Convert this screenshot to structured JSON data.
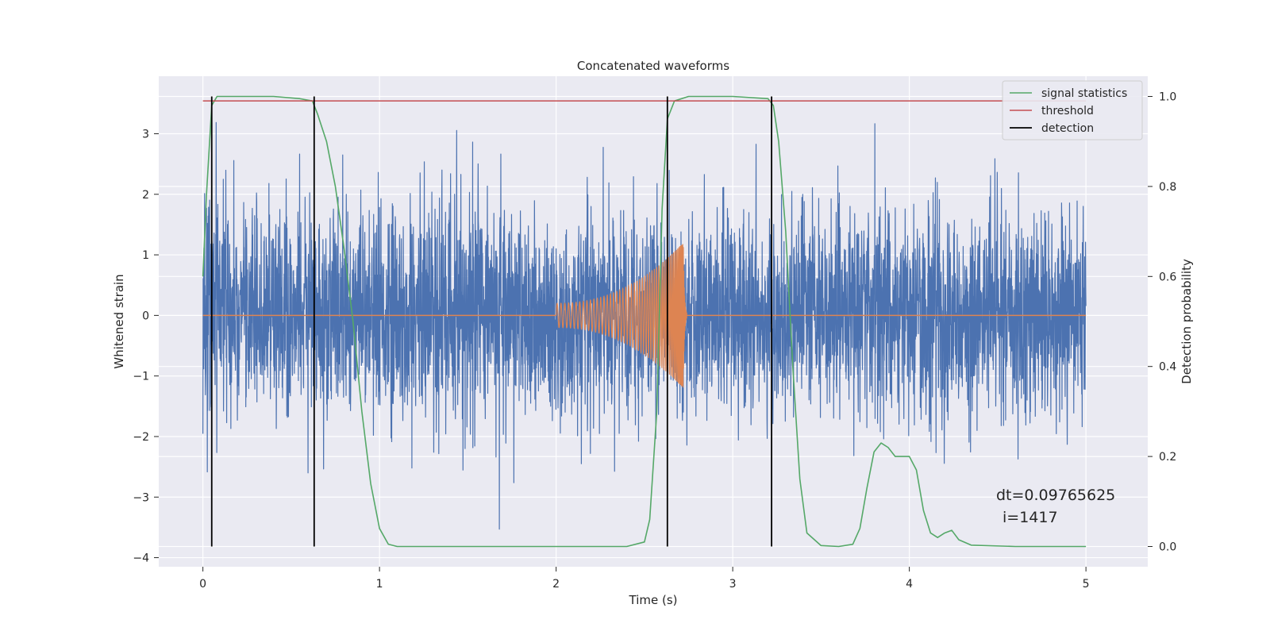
{
  "chart_data": {
    "type": "line",
    "title": "Concatenated waveforms",
    "xlabel": "Time (s)",
    "ylabel": "Whitened strain",
    "y2label": "Detection probability",
    "xlim": [
      -0.25,
      5.35
    ],
    "ylim": [
      -4.15,
      3.95
    ],
    "y2lim": [
      -0.045,
      1.045
    ],
    "xticks": [
      0,
      1,
      2,
      3,
      4,
      5
    ],
    "yticks": [
      -4,
      -3,
      -2,
      -1,
      0,
      1,
      2,
      3
    ],
    "y2ticks": [
      0.0,
      0.2,
      0.4,
      0.6,
      0.8,
      1.0
    ],
    "grid": true,
    "legend_position": "top-right",
    "legend": [
      {
        "label": "signal statistics",
        "color": "#55a868"
      },
      {
        "label": "threshold",
        "color": "#c44e52"
      },
      {
        "label": "detection",
        "color": "#000000"
      }
    ],
    "colors": {
      "background": "#eaeaf2",
      "grid": "#ffffff",
      "strain": "#4c72b0",
      "injection": "#dd8452"
    },
    "strain": {
      "x_range": [
        0,
        5
      ],
      "envelope": [
        -0.8,
        0.6
      ]
    },
    "injection": {
      "x_range": [
        2.0,
        2.74
      ],
      "peak_time": 2.72,
      "peak_amplitude": 1.2
    },
    "threshold": {
      "value": 0.99,
      "x_range": [
        0,
        5
      ]
    },
    "detections": [
      0.05,
      0.63,
      2.63,
      3.22
    ],
    "signal_statistics": {
      "x": [
        0.0,
        0.02,
        0.05,
        0.08,
        0.15,
        0.4,
        0.55,
        0.62,
        0.65,
        0.7,
        0.75,
        0.8,
        0.85,
        0.9,
        0.95,
        1.0,
        1.05,
        1.1,
        1.5,
        2.0,
        2.4,
        2.5,
        2.53,
        2.57,
        2.6,
        2.63,
        2.67,
        2.75,
        3.0,
        3.2,
        3.23,
        3.26,
        3.3,
        3.34,
        3.38,
        3.42,
        3.5,
        3.6,
        3.68,
        3.72,
        3.76,
        3.8,
        3.84,
        3.88,
        3.92,
        3.96,
        4.0,
        4.04,
        4.08,
        4.12,
        4.16,
        4.2,
        4.24,
        4.28,
        4.35,
        4.6,
        5.0
      ],
      "y": [
        0.6,
        0.78,
        0.98,
        1.0,
        1.0,
        1.0,
        0.995,
        0.99,
        0.96,
        0.9,
        0.8,
        0.66,
        0.5,
        0.3,
        0.14,
        0.04,
        0.005,
        0.0,
        0.0,
        0.0,
        0.0,
        0.01,
        0.06,
        0.3,
        0.75,
        0.95,
        0.99,
        1.0,
        1.0,
        0.995,
        0.98,
        0.9,
        0.7,
        0.4,
        0.15,
        0.03,
        0.002,
        0.0,
        0.005,
        0.04,
        0.13,
        0.21,
        0.23,
        0.22,
        0.2,
        0.2,
        0.2,
        0.17,
        0.08,
        0.03,
        0.02,
        0.03,
        0.036,
        0.015,
        0.003,
        0.0,
        0.0
      ]
    },
    "annotations": [
      "dt=0.09765625",
      "i=1417"
    ]
  }
}
